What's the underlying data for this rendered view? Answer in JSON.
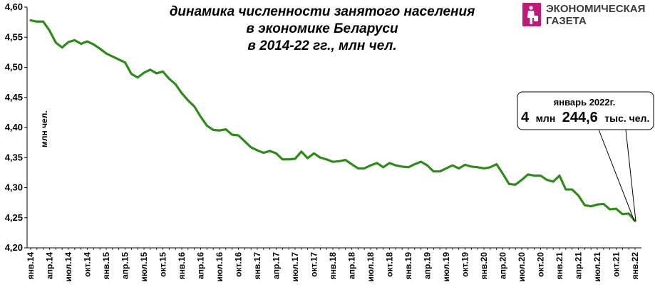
{
  "chart_data": {
    "type": "line",
    "title_lines": [
      "динамика численности занятого населения",
      "в экономике Беларуси",
      "в 2014-22 гг., млн чел."
    ],
    "ylabel": "млн чел.",
    "xlabel": "",
    "ylim": [
      4.2,
      4.6
    ],
    "yticks": [
      "4,20",
      "4,25",
      "4,30",
      "4,35",
      "4,40",
      "4,45",
      "4,50",
      "4,55",
      "4,60"
    ],
    "grid": false,
    "line_color": "#2e8b1a",
    "xtick_labels": [
      "янв.14",
      "апр.14",
      "июл.14",
      "окт.14",
      "янв.15",
      "апр.15",
      "июл.15",
      "окт.15",
      "янв.16",
      "апр.16",
      "июл.16",
      "окт.16",
      "янв.17",
      "апр.17",
      "июл.17",
      "окт.17",
      "янв.18",
      "апр.18",
      "июл.18",
      "окт.18",
      "янв.19",
      "апр.19",
      "июл.19",
      "окт.19",
      "янв.20",
      "апр.20",
      "июл.20",
      "окт.20",
      "янв.21",
      "апр.21",
      "июл.21",
      "окт.21",
      "янв.22"
    ],
    "series": [
      {
        "values": [
          4.578,
          4.576,
          4.576,
          4.561,
          4.541,
          4.533,
          4.542,
          4.545,
          4.539,
          4.543,
          4.538,
          4.531,
          4.523,
          4.518,
          4.513,
          4.508,
          4.489,
          4.483,
          4.491,
          4.496,
          4.49,
          4.493,
          4.481,
          4.472,
          4.457,
          4.445,
          4.435,
          4.418,
          4.403,
          4.396,
          4.395,
          4.397,
          4.388,
          4.387,
          4.377,
          4.367,
          4.362,
          4.358,
          4.361,
          4.357,
          4.347,
          4.347,
          4.348,
          4.36,
          4.349,
          4.357,
          4.35,
          4.347,
          4.343,
          4.344,
          4.346,
          4.339,
          4.332,
          4.332,
          4.337,
          4.341,
          4.334,
          4.341,
          4.337,
          4.335,
          4.334,
          4.339,
          4.343,
          4.337,
          4.327,
          4.327,
          4.332,
          4.337,
          4.332,
          4.338,
          4.335,
          4.334,
          4.332,
          4.334,
          4.339,
          4.323,
          4.306,
          4.305,
          4.313,
          4.322,
          4.32,
          4.32,
          4.313,
          4.31,
          4.32,
          4.297,
          4.297,
          4.287,
          4.271,
          4.269,
          4.272,
          4.273,
          4.264,
          4.265,
          4.256,
          4.257,
          4.2446
        ]
      }
    ],
    "annotation": {
      "header": "январь 2022г.",
      "main_big_1": "4",
      "main_small_1": "млн",
      "main_big_2": "244,6",
      "main_small_2": "тыс. чел.",
      "points_to_index": 96
    }
  },
  "logo": {
    "line1": "ЭКОНОМИЧЕСКАЯ",
    "line2": "ГАЗЕТА",
    "accent_color": "#c2187a"
  }
}
